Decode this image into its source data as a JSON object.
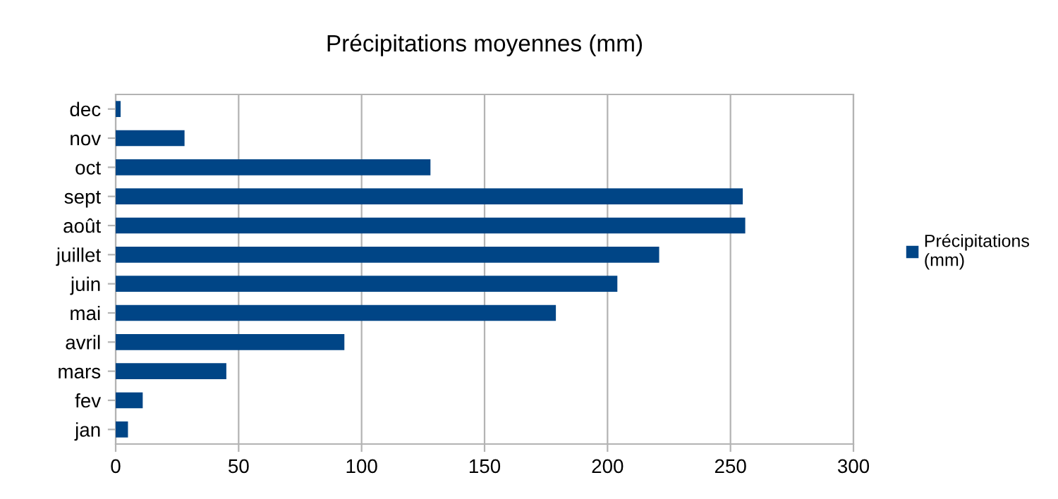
{
  "chart_data": {
    "type": "bar",
    "orientation": "horizontal",
    "title": "Précipitations moyennes (mm)",
    "categories": [
      "dec",
      "nov",
      "oct",
      "sept",
      "août",
      "juillet",
      "juin",
      "mai",
      "avril",
      "mars",
      "fev",
      "jan"
    ],
    "series": [
      {
        "name": "Précipitations (mm)",
        "color": "#004586",
        "values": [
          2,
          28,
          128,
          255,
          256,
          221,
          204,
          179,
          93,
          45,
          11,
          5
        ]
      }
    ],
    "xlim": [
      0,
      300
    ],
    "xticks": [
      0,
      50,
      100,
      150,
      200,
      250,
      300
    ],
    "grid": "x",
    "legend": "right"
  }
}
